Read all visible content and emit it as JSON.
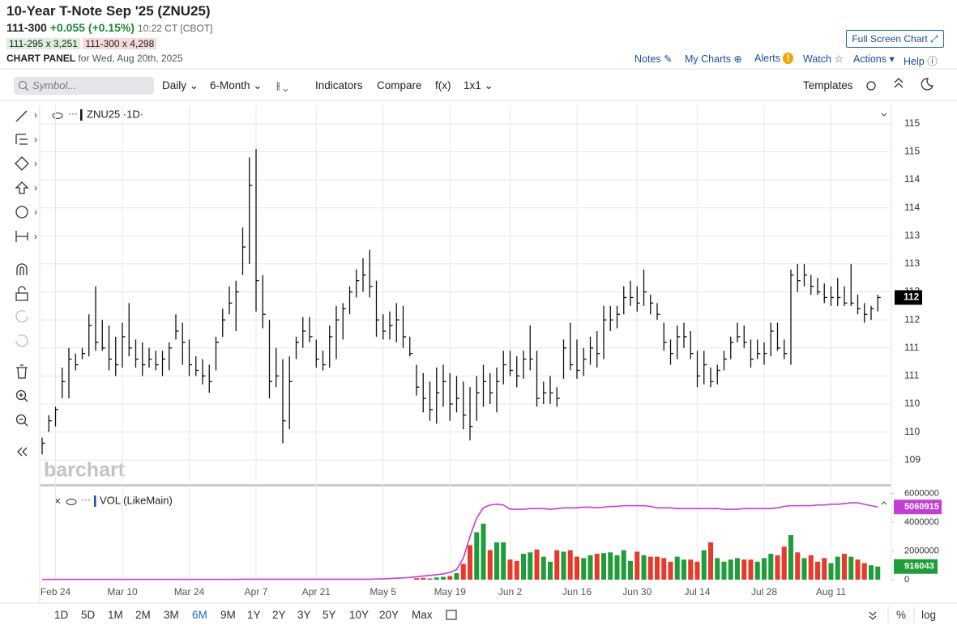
{
  "header": {
    "title": "10-Year T-Note Sep '25 (ZNU25)",
    "price": "111-300",
    "change": "+0.055 (+0.15%)",
    "time": "10:22 CT [CBOT]",
    "bid": "111-295 x 3,251",
    "ask": "111-300 x 4,298",
    "panel": "CHART PANEL",
    "panel_date": "for Wed, Aug 20th, 2025",
    "full_screen": "Full Screen Chart"
  },
  "links": [
    "Notes",
    "My Charts",
    "Alerts",
    "Watch",
    "Actions",
    "Help"
  ],
  "toolbar": {
    "symbol": "Symbol...",
    "items": [
      "Daily",
      "6-Month",
      "Indicators",
      "Compare",
      "f(x)",
      "1x1"
    ],
    "templates": "Templates"
  },
  "panes": {
    "price_label": "ZNU25 ·1D·",
    "watermark": "barchart"
  },
  "ranges": {
    "items": [
      "1D",
      "5D",
      "1M",
      "2M",
      "3M",
      "6M",
      "9M",
      "1Y",
      "2Y",
      "3Y",
      "5Y",
      "10Y",
      "20Y",
      "Max"
    ],
    "active": 5,
    "right": [
      "%",
      "log"
    ]
  },
  "chart_data": [
    {
      "type": "ohlc",
      "color": "#111111",
      "categories": [
        null,
        null,
        "Feb 24",
        null,
        null,
        null,
        null,
        null,
        null,
        null,
        null,
        null,
        "Mar 10",
        null,
        null,
        null,
        null,
        null,
        null,
        null,
        null,
        null,
        "Mar 24",
        null,
        null,
        null,
        null,
        null,
        null,
        null,
        null,
        null,
        "Apr 7",
        null,
        null,
        null,
        null,
        null,
        null,
        null,
        null,
        "Apr 21",
        null,
        null,
        null,
        null,
        null,
        null,
        null,
        null,
        null,
        "May 5",
        null,
        null,
        null,
        null,
        null,
        null,
        null,
        null,
        null,
        "May 19",
        null,
        null,
        null,
        null,
        null,
        null,
        null,
        null,
        "Jun 2",
        null,
        null,
        null,
        null,
        null,
        null,
        null,
        null,
        null,
        "Jun 16",
        null,
        null,
        null,
        null,
        null,
        null,
        null,
        null,
        "Jun 30",
        null,
        null,
        null,
        null,
        null,
        null,
        null,
        null,
        "Jul 14",
        null,
        null,
        null,
        null,
        null,
        null,
        null,
        null,
        null,
        "Jul 28",
        null,
        null,
        null,
        null,
        null,
        null,
        null,
        null,
        null,
        "Aug 11",
        null,
        null,
        null,
        null,
        null,
        null,
        null
      ],
      "high": [
        109.9,
        110.3,
        110.45,
        111.15,
        111.5,
        111.4,
        111.5,
        112.1,
        112.6,
        112.0,
        111.9,
        111.7,
        111.95,
        112.3,
        111.65,
        111.6,
        111.5,
        111.45,
        111.45,
        111.6,
        112.1,
        111.95,
        111.65,
        111.35,
        111.3,
        111.2,
        111.7,
        112.2,
        112.6,
        112.7,
        113.65,
        114.9,
        115.05,
        112.8,
        112.0,
        111.5,
        111.3,
        111.35,
        111.7,
        112.05,
        112.05,
        111.65,
        111.45,
        111.9,
        112.25,
        112.3,
        112.6,
        112.9,
        113.1,
        113.25,
        112.7,
        112.1,
        112.15,
        112.3,
        112.25,
        111.7,
        111.2,
        111.05,
        110.9,
        111.15,
        111.2,
        111.05,
        111.0,
        110.9,
        110.8,
        111.0,
        111.2,
        111.05,
        111.15,
        111.45,
        111.45,
        111.35,
        111.45,
        111.9,
        111.45,
        110.9,
        111.0,
        110.8,
        111.65,
        111.95,
        111.65,
        111.5,
        111.7,
        111.8,
        112.25,
        112.25,
        112.25,
        112.6,
        112.7,
        112.6,
        112.9,
        112.45,
        112.3,
        111.95,
        111.65,
        111.9,
        111.95,
        111.8,
        111.45,
        111.45,
        111.15,
        111.2,
        111.45,
        111.7,
        111.95,
        111.9,
        111.65,
        111.65,
        111.6,
        111.95,
        111.95,
        111.65,
        112.9,
        113.0,
        113.0,
        112.8,
        112.75,
        112.65,
        112.6,
        112.75,
        112.6,
        113.0,
        112.45,
        112.3,
        112.25,
        112.45
      ],
      "low": [
        109.6,
        110.0,
        110.1,
        110.6,
        110.6,
        111.1,
        111.3,
        111.35,
        111.45,
        111.45,
        111.1,
        111.0,
        111.15,
        111.35,
        111.15,
        111.0,
        111.15,
        111.1,
        111.0,
        111.1,
        111.65,
        111.2,
        111.0,
        111.0,
        110.85,
        110.7,
        111.1,
        111.7,
        112.1,
        111.8,
        112.8,
        113.0,
        112.15,
        111.85,
        110.6,
        110.8,
        109.8,
        110.05,
        111.3,
        111.5,
        111.6,
        111.15,
        111.1,
        111.15,
        111.3,
        111.65,
        112.1,
        112.4,
        112.5,
        112.4,
        111.7,
        111.65,
        111.65,
        111.6,
        111.5,
        111.35,
        110.65,
        110.35,
        110.2,
        110.15,
        110.45,
        110.2,
        110.35,
        110.05,
        109.85,
        110.2,
        110.45,
        110.5,
        110.35,
        110.85,
        111.0,
        110.8,
        110.95,
        111.1,
        110.45,
        110.5,
        110.5,
        110.45,
        110.95,
        111.1,
        110.95,
        111.0,
        111.2,
        111.15,
        111.3,
        111.8,
        111.85,
        112.1,
        112.25,
        112.15,
        112.25,
        112.1,
        112.0,
        111.45,
        111.2,
        111.3,
        111.5,
        111.3,
        110.8,
        110.85,
        110.8,
        110.85,
        111.1,
        111.3,
        111.6,
        111.5,
        111.15,
        111.3,
        111.2,
        111.35,
        111.45,
        111.3,
        111.2,
        112.5,
        112.6,
        112.45,
        112.45,
        112.3,
        112.25,
        112.25,
        112.25,
        112.25,
        112.1,
        111.95,
        112.0,
        112.15
      ],
      "close": [
        109.8,
        110.2,
        110.4,
        110.9,
        111.3,
        111.2,
        111.4,
        111.9,
        111.6,
        111.5,
        111.3,
        111.2,
        111.7,
        111.5,
        111.3,
        111.2,
        111.3,
        111.2,
        111.3,
        111.5,
        111.8,
        111.6,
        111.2,
        111.1,
        111.0,
        110.9,
        111.6,
        112.0,
        112.3,
        112.5,
        113.3,
        114.4,
        112.7,
        112.1,
        110.9,
        111.0,
        110.2,
        110.9,
        111.6,
        111.8,
        111.7,
        111.3,
        111.2,
        111.7,
        112.0,
        112.2,
        112.5,
        112.7,
        112.8,
        112.6,
        112.0,
        111.8,
        111.9,
        112.0,
        111.7,
        111.4,
        110.8,
        110.6,
        110.4,
        110.7,
        110.9,
        110.5,
        110.6,
        110.3,
        110.1,
        110.7,
        110.9,
        110.7,
        110.9,
        111.2,
        111.1,
        111.0,
        111.3,
        111.3,
        110.6,
        110.7,
        110.7,
        110.6,
        111.5,
        111.2,
        111.1,
        111.3,
        111.5,
        111.4,
        112.0,
        112.0,
        112.1,
        112.4,
        112.4,
        112.3,
        112.5,
        112.3,
        112.1,
        111.6,
        111.4,
        111.7,
        111.7,
        111.4,
        111.0,
        111.2,
        110.9,
        111.1,
        111.3,
        111.6,
        111.7,
        111.6,
        111.3,
        111.4,
        111.4,
        111.8,
        111.5,
        111.4,
        112.8,
        112.7,
        112.8,
        112.6,
        112.5,
        112.4,
        112.4,
        112.4,
        112.3,
        112.3,
        112.2,
        112.1,
        112.2,
        112.4
      ],
      "last_label": "112",
      "ylim": [
        109.07,
        115.83
      ],
      "yticks": [
        {
          "value": 115.5,
          "label": "115"
        },
        115,
        {
          "value": 114.5,
          "label": "114"
        },
        114,
        {
          "value": 113.5,
          "label": "113"
        },
        113,
        {
          "value": 112.5,
          "label": "112"
        },
        112,
        {
          "value": 111.5,
          "label": "111"
        },
        111,
        {
          "value": 110.5,
          "label": "110"
        },
        110,
        {
          "value": 109.5,
          "label": "109"
        }
      ],
      "grid": true
    },
    {
      "type": "bar",
      "title": "VOL (LikeMain)",
      "up_color": "#1f9d3a",
      "down_color": "#e8392a",
      "line_color": "#c23fd6",
      "values": [
        null,
        null,
        null,
        null,
        null,
        null,
        null,
        null,
        null,
        null,
        null,
        null,
        null,
        null,
        null,
        null,
        null,
        null,
        null,
        null,
        null,
        null,
        null,
        null,
        null,
        null,
        null,
        null,
        null,
        null,
        null,
        null,
        null,
        null,
        null,
        null,
        null,
        null,
        null,
        null,
        null,
        null,
        null,
        null,
        null,
        null,
        null,
        null,
        null,
        null,
        null,
        null,
        null,
        null,
        null,
        null,
        100000,
        120000,
        80000,
        150000,
        200000,
        250000,
        450000,
        1100000,
        2400000,
        3300000,
        3900000,
        2060000,
        2600000,
        2600000,
        1400000,
        1300000,
        1800000,
        1900000,
        2100000,
        1600000,
        1250000,
        2050000,
        1950000,
        2050000,
        1600000,
        1500000,
        1700000,
        1800000,
        1850000,
        1900000,
        1700000,
        2050000,
        1300000,
        1950000,
        1700000,
        1600000,
        1600000,
        1500000,
        1250000,
        1600000,
        1400000,
        1400000,
        1250000,
        2050000,
        2600000,
        1500000,
        1250000,
        1400000,
        1500000,
        1400000,
        1400000,
        1250000,
        1500000,
        1800000,
        1700000,
        2300000,
        3100000,
        1900000,
        1500000,
        1700000,
        1250000,
        1500000,
        1150000,
        1600000,
        1800000,
        1600000,
        1400000,
        1150000,
        1000000,
        916043
      ],
      "line_values": [
        20000,
        20000,
        20000,
        20000,
        20000,
        20000,
        20000,
        20000,
        20000,
        20000,
        20000,
        20000,
        20000,
        20000,
        20000,
        20000,
        20000,
        20000,
        20000,
        20000,
        20000,
        20000,
        20000,
        20000,
        20000,
        20000,
        20000,
        20000,
        20000,
        20000,
        30000,
        30000,
        30000,
        30000,
        30000,
        30000,
        30000,
        30000,
        30000,
        30000,
        30000,
        30000,
        30000,
        30000,
        30000,
        30000,
        30000,
        30000,
        30000,
        30000,
        50000,
        60000,
        80000,
        100000,
        120000,
        150000,
        200000,
        250000,
        300000,
        350000,
        400000,
        500000,
        700000,
        1500000,
        3000000,
        4300000,
        5000000,
        5200000,
        5250000,
        5200000,
        4900000,
        4900000,
        4900000,
        4950000,
        4950000,
        4950000,
        4900000,
        4950000,
        5000000,
        5000000,
        5000000,
        5050000,
        5050000,
        5000000,
        5050000,
        5100000,
        5100000,
        5150000,
        5150000,
        5150000,
        5150000,
        5100000,
        5000000,
        5000000,
        5000000,
        4950000,
        4950000,
        4950000,
        4950000,
        4950000,
        4950000,
        4950000,
        4900000,
        4900000,
        4900000,
        4950000,
        4950000,
        4950000,
        4950000,
        4950000,
        5000000,
        5100000,
        5150000,
        5150000,
        5150000,
        5150000,
        5200000,
        5200000,
        5250000,
        5250000,
        5300000,
        5350000,
        5350000,
        5250000,
        5150000,
        5060915
      ],
      "ylim": [
        0,
        6200000
      ],
      "yticks": [
        0,
        2000000,
        4000000,
        6000000
      ]
    }
  ]
}
